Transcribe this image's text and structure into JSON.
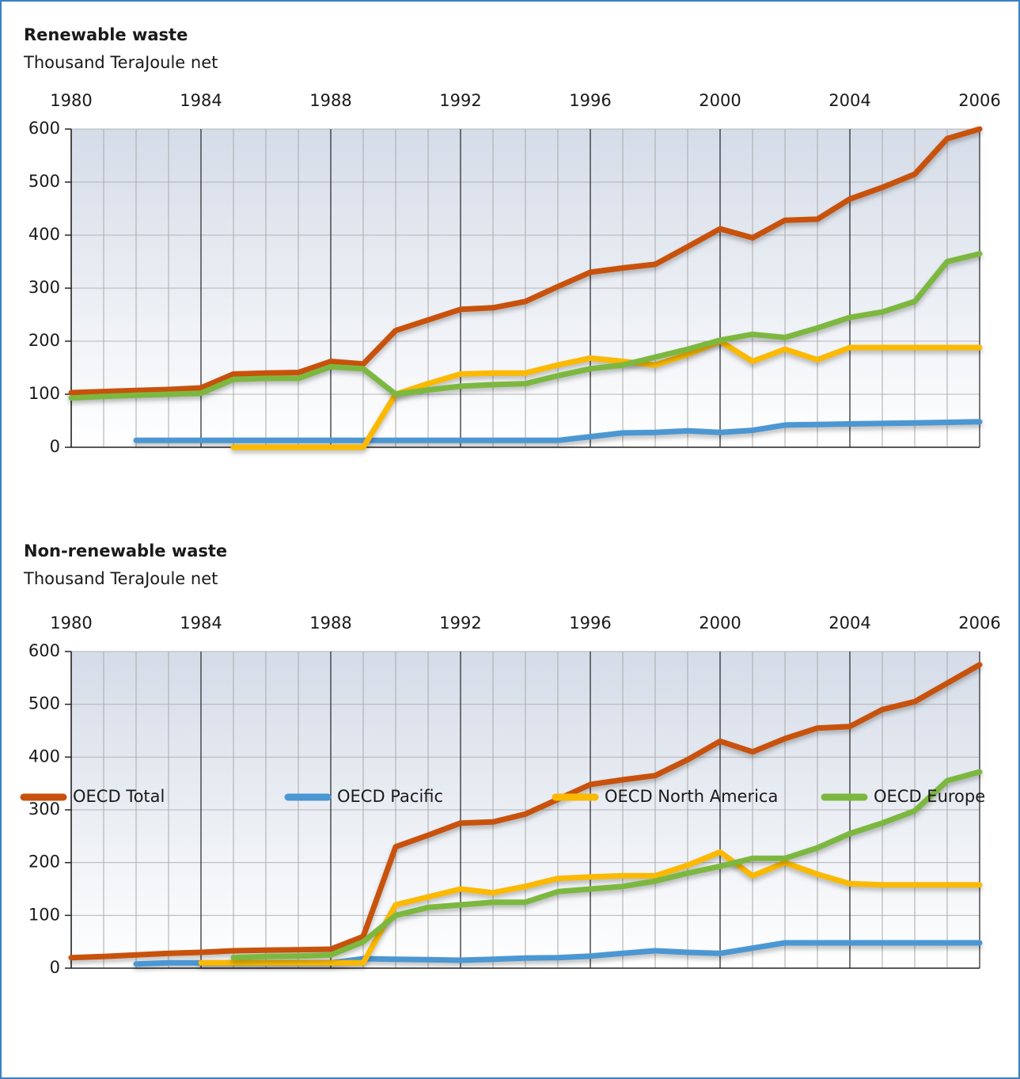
{
  "chart_data": [
    {
      "type": "line",
      "title": "Renewable waste",
      "subtitle": "Thousand TeraJoule net",
      "categories": [
        "1980",
        null,
        null,
        null,
        "1984",
        null,
        null,
        null,
        "1988",
        null,
        null,
        null,
        "1992",
        null,
        null,
        null,
        "1996",
        null,
        null,
        null,
        "2000",
        null,
        null,
        null,
        "2004",
        null,
        null,
        null,
        "2006"
      ],
      "ylim": [
        0,
        600
      ],
      "yticks": [
        0,
        100,
        200,
        300,
        400,
        500,
        600
      ],
      "grid": true,
      "series": [
        {
          "name": "OECD Total",
          "color": "#c8520c",
          "values": [
            103,
            105,
            107,
            109,
            112,
            138,
            140,
            141,
            162,
            157,
            220,
            240,
            260,
            263,
            275,
            303,
            330,
            338,
            345,
            378,
            412,
            395,
            428,
            430,
            468,
            490,
            515,
            582,
            600
          ]
        },
        {
          "name": "OECD Pacific",
          "color": "#4b97d3",
          "values": [
            null,
            null,
            13,
            13,
            13,
            13,
            13,
            13,
            13,
            13,
            13,
            13,
            13,
            13,
            13,
            13,
            20,
            27,
            28,
            31,
            28,
            32,
            42,
            43,
            44,
            45,
            46,
            47,
            48
          ]
        },
        {
          "name": "OECD North America",
          "color": "#fbb900",
          "values": [
            null,
            null,
            null,
            null,
            null,
            0,
            0,
            0,
            0,
            0,
            100,
            120,
            138,
            140,
            140,
            155,
            168,
            162,
            155,
            175,
            200,
            162,
            185,
            165,
            188,
            188,
            188,
            188,
            188
          ]
        },
        {
          "name": "OECD Europe",
          "color": "#7cb83f",
          "values": [
            93,
            96,
            98,
            100,
            102,
            128,
            130,
            130,
            152,
            148,
            100,
            108,
            115,
            118,
            120,
            135,
            148,
            155,
            170,
            185,
            202,
            213,
            207,
            225,
            245,
            255,
            275,
            350,
            365
          ]
        }
      ]
    },
    {
      "type": "line",
      "title": "Non-renewable waste",
      "subtitle": "Thousand TeraJoule net",
      "categories": [
        "1980",
        null,
        null,
        null,
        "1984",
        null,
        null,
        null,
        "1988",
        null,
        null,
        null,
        "1992",
        null,
        null,
        null,
        "1996",
        null,
        null,
        null,
        "2000",
        null,
        null,
        null,
        "2004",
        null,
        null,
        null,
        "2006"
      ],
      "ylim": [
        0,
        600
      ],
      "yticks": [
        0,
        100,
        200,
        300,
        400,
        500,
        600
      ],
      "grid": true,
      "series": [
        {
          "name": "OECD Total",
          "color": "#c8520c",
          "values": [
            20,
            22,
            25,
            28,
            30,
            33,
            34,
            35,
            36,
            60,
            230,
            252,
            275,
            277,
            292,
            320,
            348,
            357,
            365,
            395,
            430,
            410,
            435,
            455,
            458,
            490,
            505,
            540,
            575
          ]
        },
        {
          "name": "OECD Pacific",
          "color": "#4b97d3",
          "values": [
            null,
            null,
            8,
            10,
            10,
            10,
            10,
            10,
            10,
            18,
            17,
            16,
            15,
            17,
            19,
            20,
            23,
            28,
            33,
            30,
            28,
            38,
            48,
            48,
            48,
            48,
            48,
            48,
            48
          ]
        },
        {
          "name": "OECD North America",
          "color": "#fbb900",
          "values": [
            null,
            null,
            null,
            null,
            10,
            10,
            10,
            10,
            10,
            10,
            120,
            135,
            150,
            143,
            155,
            170,
            173,
            175,
            175,
            195,
            220,
            175,
            200,
            178,
            160,
            158,
            158,
            158,
            158
          ]
        },
        {
          "name": "OECD Europe",
          "color": "#7cb83f",
          "values": [
            null,
            null,
            null,
            null,
            null,
            20,
            22,
            23,
            25,
            50,
            100,
            115,
            120,
            125,
            125,
            145,
            150,
            155,
            165,
            180,
            193,
            208,
            208,
            228,
            255,
            275,
            298,
            355,
            372
          ]
        }
      ]
    }
  ]
}
